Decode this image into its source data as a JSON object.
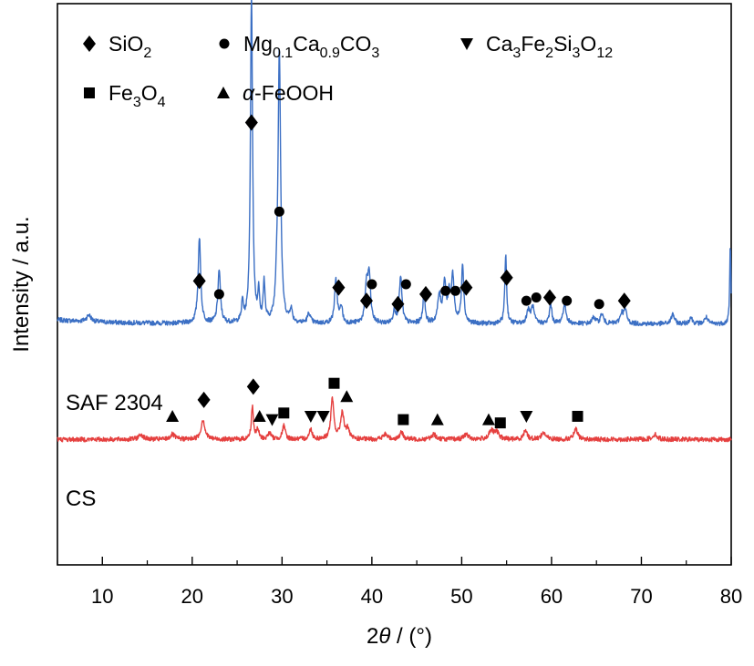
{
  "chart_data": {
    "type": "line",
    "xlabel": {
      "pre": "2",
      "var": "θ",
      "post": " / (°)"
    },
    "ylabel": "Intensity / a.u.",
    "xlim": [
      5,
      80
    ],
    "x_ticks": [
      "10",
      "20",
      "30",
      "40",
      "50",
      "60",
      "70",
      "80"
    ],
    "y_ticks": [],
    "grid": false,
    "legend_position": "top-left",
    "legend": [
      {
        "symbol": "diamond",
        "parts": [
          [
            "SiO",
            ""
          ],
          [
            "2",
            "sub"
          ]
        ]
      },
      {
        "symbol": "circle",
        "parts": [
          [
            "Mg",
            ""
          ],
          [
            "0.1",
            "sub"
          ],
          [
            "Ca",
            ""
          ],
          [
            "0.9",
            "sub"
          ],
          [
            "CO",
            ""
          ],
          [
            "3",
            "sub"
          ]
        ]
      },
      {
        "symbol": "triangle-down",
        "parts": [
          [
            "Ca",
            ""
          ],
          [
            "3",
            "sub"
          ],
          [
            "Fe",
            ""
          ],
          [
            "2",
            "sub"
          ],
          [
            "Si",
            ""
          ],
          [
            "3",
            "sub"
          ],
          [
            "O",
            ""
          ],
          [
            "12",
            "sub"
          ]
        ]
      },
      {
        "symbol": "square",
        "parts": [
          [
            "Fe",
            ""
          ],
          [
            "3",
            "sub"
          ],
          [
            "O",
            ""
          ],
          [
            "4",
            "sub"
          ]
        ]
      },
      {
        "symbol": "triangle-up",
        "parts": [
          [
            "α",
            "italic"
          ],
          [
            "-FeOOH",
            ""
          ]
        ]
      }
    ],
    "series": [
      {
        "name": "SAF 2304",
        "color": "#3b6fc4",
        "baseline": 73,
        "peaks": [
          [
            8.5,
            2,
            0.3
          ],
          [
            20.8,
            26,
            0.17
          ],
          [
            23.0,
            16,
            0.17
          ],
          [
            25.6,
            6,
            0.12
          ],
          [
            26.6,
            100,
            0.14
          ],
          [
            27.4,
            9,
            0.1
          ],
          [
            28.0,
            12,
            0.12
          ],
          [
            29.4,
            6,
            0.12
          ],
          [
            29.7,
            83,
            0.17
          ],
          [
            31.0,
            4,
            0.15
          ],
          [
            33.0,
            3,
            0.2
          ],
          [
            36.0,
            13,
            0.18
          ],
          [
            36.6,
            5,
            0.15
          ],
          [
            39.4,
            11,
            0.18
          ],
          [
            39.7,
            14,
            0.18
          ],
          [
            42.5,
            4,
            0.15
          ],
          [
            43.2,
            14,
            0.18
          ],
          [
            45.8,
            9,
            0.15
          ],
          [
            47.5,
            8,
            0.2
          ],
          [
            48.1,
            12,
            0.2
          ],
          [
            48.6,
            7,
            0.15
          ],
          [
            49.0,
            14,
            0.18
          ],
          [
            50.1,
            18,
            0.15
          ],
          [
            54.9,
            21,
            0.12
          ],
          [
            57.4,
            4,
            0.2
          ],
          [
            57.9,
            5,
            0.2
          ],
          [
            59.9,
            6,
            0.15
          ],
          [
            61.5,
            3,
            0.2
          ],
          [
            61.4,
            3,
            0.2
          ],
          [
            64.7,
            2,
            0.2
          ],
          [
            65.6,
            3,
            0.2
          ],
          [
            67.8,
            3,
            0.2
          ],
          [
            68.2,
            4,
            0.2
          ],
          [
            73.5,
            3,
            0.2
          ],
          [
            75.5,
            2,
            0.2
          ],
          [
            77.2,
            2,
            0.2
          ],
          [
            79.9,
            24,
            0.08
          ]
        ],
        "markers": [
          [
            "diamond",
            20.8,
            86
          ],
          [
            "circle",
            23.0,
            82
          ],
          [
            "diamond",
            26.6,
            134
          ],
          [
            "circle",
            29.7,
            107
          ],
          [
            "diamond",
            36.3,
            84
          ],
          [
            "diamond",
            39.4,
            80
          ],
          [
            "circle",
            40.0,
            85
          ],
          [
            "diamond",
            42.9,
            79
          ],
          [
            "circle",
            43.8,
            85
          ],
          [
            "diamond",
            46.0,
            82
          ],
          [
            "circle",
            48.2,
            83
          ],
          [
            "circle",
            49.3,
            83
          ],
          [
            "diamond",
            50.5,
            84
          ],
          [
            "diamond",
            55.0,
            87
          ],
          [
            "circle",
            57.2,
            80
          ],
          [
            "circle",
            58.3,
            81
          ],
          [
            "diamond",
            59.8,
            81
          ],
          [
            "circle",
            61.7,
            80
          ],
          [
            "circle",
            65.3,
            79
          ],
          [
            "diamond",
            68.1,
            80
          ]
        ]
      },
      {
        "name": "CS",
        "color": "#e5403f",
        "baseline": 38,
        "peaks": [
          [
            14.3,
            1.5,
            0.3
          ],
          [
            17.8,
            1.5,
            0.3
          ],
          [
            21.2,
            6,
            0.25
          ],
          [
            26.7,
            10,
            0.14
          ],
          [
            27.3,
            3,
            0.15
          ],
          [
            28.6,
            2,
            0.2
          ],
          [
            30.2,
            4,
            0.2
          ],
          [
            33.2,
            3,
            0.2
          ],
          [
            35.6,
            12,
            0.2
          ],
          [
            36.7,
            8,
            0.22
          ],
          [
            37.3,
            3,
            0.2
          ],
          [
            41.5,
            1.5,
            0.3
          ],
          [
            43.3,
            2,
            0.25
          ],
          [
            46.9,
            1.5,
            0.3
          ],
          [
            50.5,
            1.5,
            0.3
          ],
          [
            53.3,
            2.5,
            0.3
          ],
          [
            53.9,
            2,
            0.3
          ],
          [
            57.1,
            3,
            0.2
          ],
          [
            59.1,
            2,
            0.3
          ],
          [
            62.7,
            3,
            0.25
          ],
          [
            71.5,
            1.5,
            0.3
          ]
        ],
        "markers": [
          [
            "triangle-up",
            17.8,
            45
          ],
          [
            "diamond",
            21.3,
            50
          ],
          [
            "diamond",
            26.8,
            54
          ],
          [
            "triangle-up",
            27.5,
            45
          ],
          [
            "triangle-down",
            28.9,
            44
          ],
          [
            "square",
            30.2,
            46
          ],
          [
            "triangle-down",
            33.2,
            45
          ],
          [
            "triangle-down",
            34.6,
            45
          ],
          [
            "square",
            35.8,
            55
          ],
          [
            "triangle-up",
            37.2,
            51
          ],
          [
            "square",
            43.5,
            44
          ],
          [
            "triangle-up",
            47.3,
            44
          ],
          [
            "triangle-up",
            53.0,
            44
          ],
          [
            "square",
            54.3,
            43
          ],
          [
            "triangle-down",
            57.2,
            45
          ],
          [
            "square",
            62.9,
            45
          ]
        ]
      }
    ]
  }
}
